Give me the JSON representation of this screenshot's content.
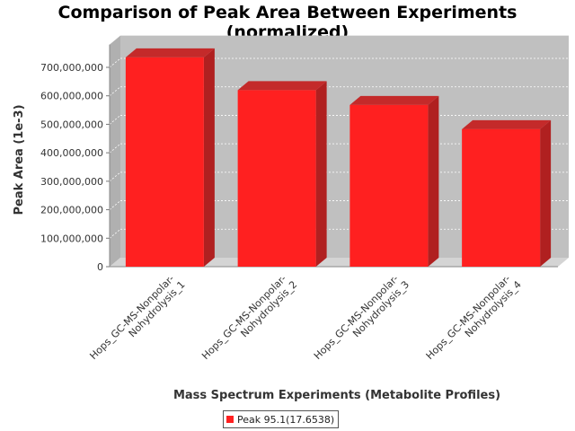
{
  "chart_data": {
    "type": "bar",
    "title_line1": "Comparison of Peak Area Between Experiments",
    "title_line2": "(normalized)",
    "xlabel": "Mass Spectrum Experiments (Metabolite Profiles)",
    "ylabel": "Peak Area (1e-3)",
    "categories": [
      [
        "Hops_GC-MS-Nonpolar-",
        "Nohydrolysis_1"
      ],
      [
        "Hops_GC-MS-Nonpolar-",
        "Nohydrolysis_2"
      ],
      [
        "Hops_GC-MS-Nonpolar-",
        "Nohydrolysis_3"
      ],
      [
        "Hops_GC-MS-Nonpolar-",
        "Nohydrolysis_4"
      ]
    ],
    "series": [
      {
        "name": "Peak 95.1(17.6538)",
        "color": "#ff2020",
        "values": [
          735000000,
          620000000,
          568000000,
          483000000
        ]
      }
    ],
    "ylim": [
      0,
      780000000
    ],
    "yticks": [
      0,
      100000000,
      200000000,
      300000000,
      400000000,
      500000000,
      600000000,
      700000000
    ],
    "ytick_labels": [
      "0",
      "100,000,000",
      "200,000,000",
      "300,000,000",
      "400,000,000",
      "500,000,000",
      "600,000,000",
      "700,000,000"
    ],
    "grid": true,
    "style": "3d",
    "legend_position": "bottom-center",
    "plot_background": "#c0c0c0"
  }
}
